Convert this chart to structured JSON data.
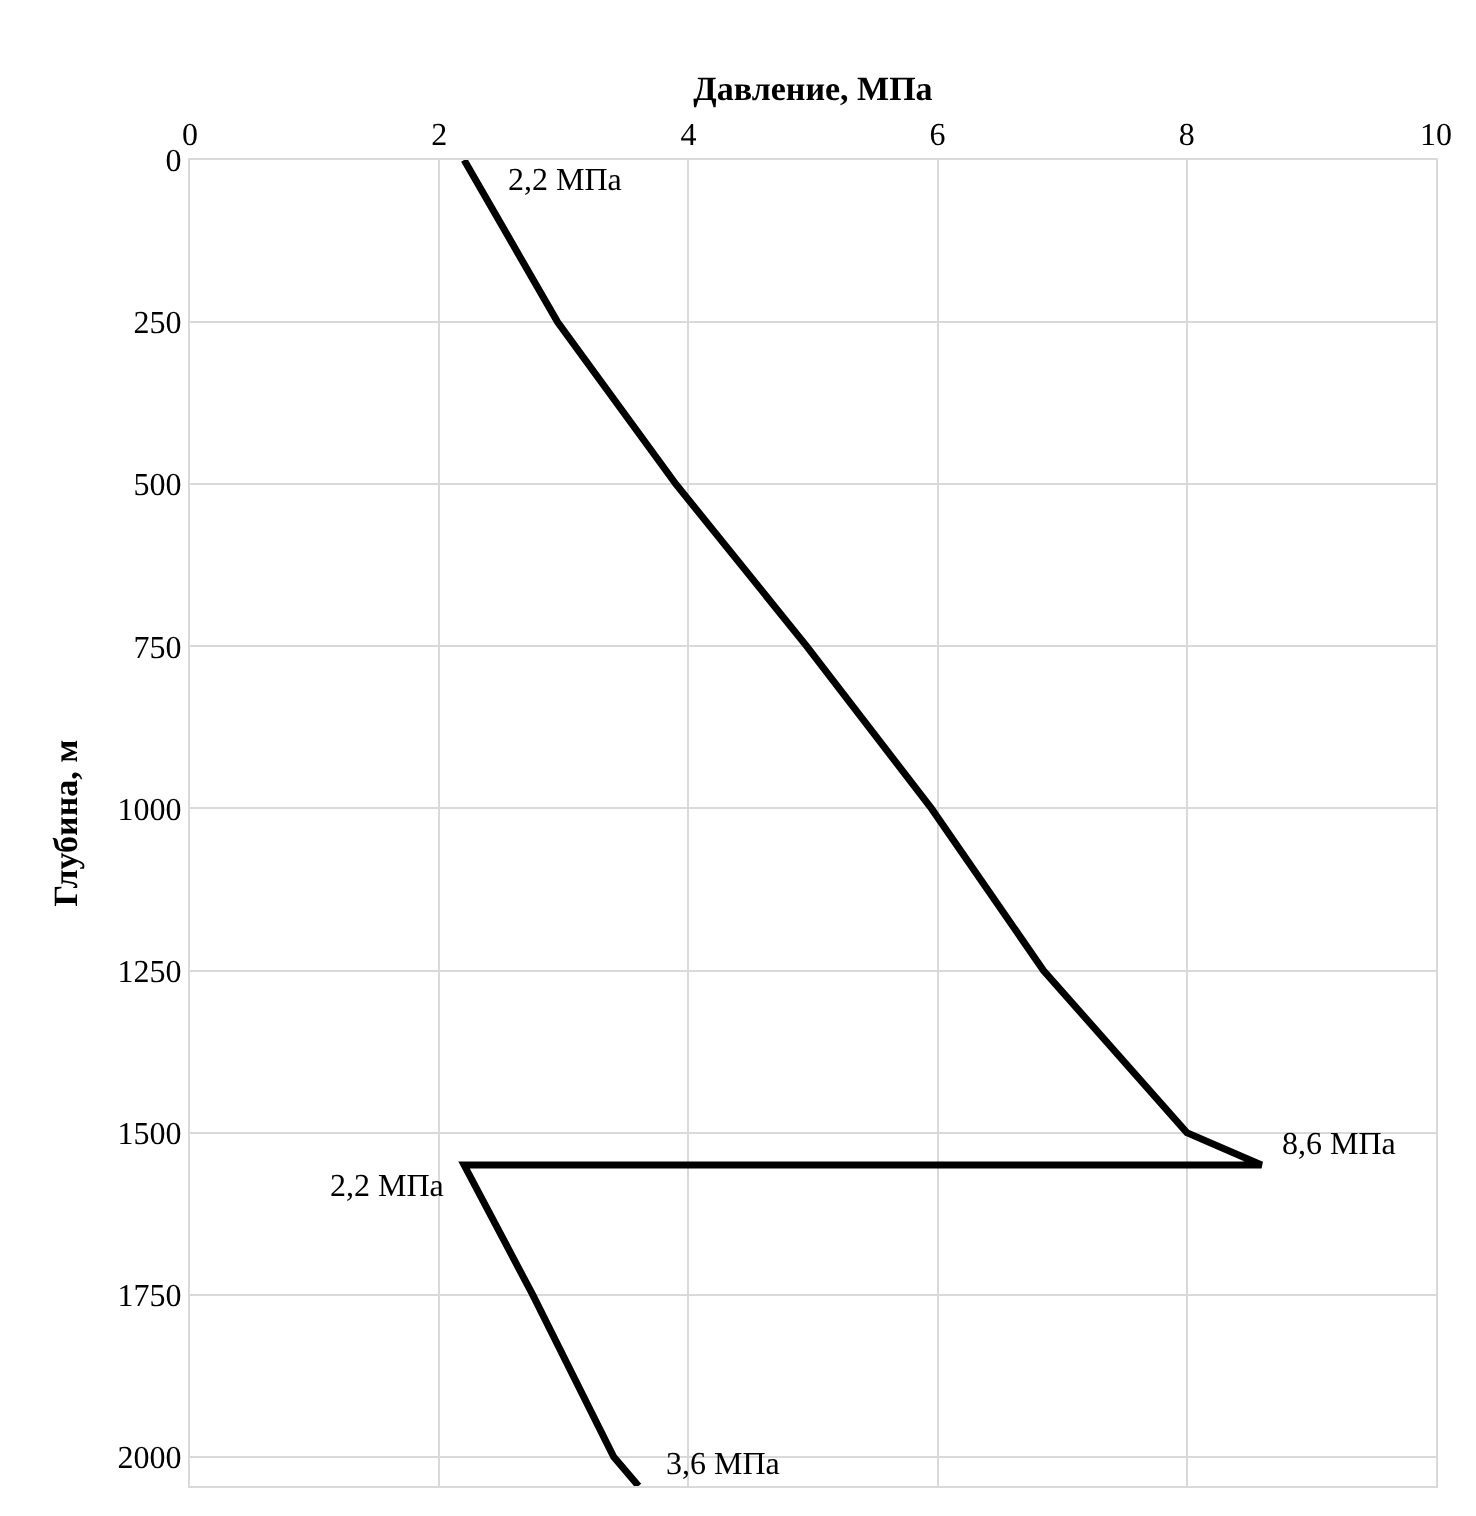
{
  "chart_data": {
    "type": "line",
    "xlabel": "Давление, МПа",
    "ylabel": "Глубина, м",
    "x": [
      2.2,
      2.95,
      3.9,
      4.95,
      5.95,
      6.85,
      8.0,
      8.6,
      2.2,
      2.75,
      3.4,
      3.6
    ],
    "series": [
      {
        "color": "#000000",
        "values": [
          0,
          250,
          500,
          750,
          1000,
          1250,
          1500,
          1550,
          1550,
          1750,
          2000,
          2045
        ]
      }
    ],
    "xlim": [
      0,
      10
    ],
    "xticks": [
      0,
      2,
      4,
      6,
      8,
      10
    ],
    "ylim": [
      2045,
      0
    ],
    "yticks": [
      0,
      250,
      500,
      750,
      1000,
      1250,
      1500,
      1750,
      2000
    ],
    "grid": true,
    "marker": "none",
    "line_style": "solid",
    "annotations": [
      {
        "text": "2,2 МПа",
        "x": 2.2,
        "y": 0
      },
      {
        "text": "8,6 МПа",
        "x": 8.6,
        "y": 1550
      },
      {
        "text": "2,2 МПа",
        "x": 2.2,
        "y": 1550
      },
      {
        "text": "3,6 МПа",
        "x": 3.6,
        "y": 2045
      }
    ]
  }
}
